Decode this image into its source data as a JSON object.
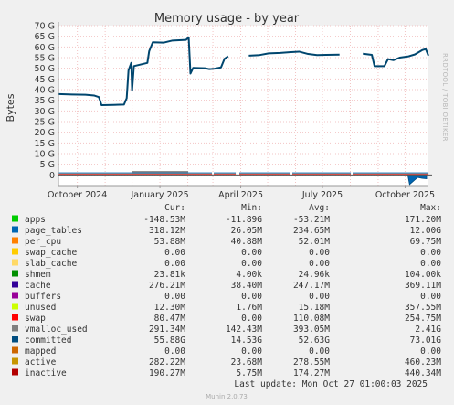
{
  "chart_data": {
    "type": "area",
    "title": "Memory usage - by year",
    "ylabel": "Bytes",
    "side_label": "RRDTOOL / TOBI OETIKER",
    "ylim": [
      -5,
      70
    ],
    "yticks": [
      {
        "v": 0,
        "label": "0"
      },
      {
        "v": 5,
        "label": "5 G"
      },
      {
        "v": 10,
        "label": "10 G"
      },
      {
        "v": 15,
        "label": "15 G"
      },
      {
        "v": 20,
        "label": "20 G"
      },
      {
        "v": 25,
        "label": "25 G"
      },
      {
        "v": 30,
        "label": "30 G"
      },
      {
        "v": 35,
        "label": "35 G"
      },
      {
        "v": 40,
        "label": "40 G"
      },
      {
        "v": 45,
        "label": "45 G"
      },
      {
        "v": 50,
        "label": "50 G"
      },
      {
        "v": 55,
        "label": "55 G"
      },
      {
        "v": 60,
        "label": "60 G"
      },
      {
        "v": 65,
        "label": "65 G"
      },
      {
        "v": 70,
        "label": "70 G"
      }
    ],
    "xlim": [
      "2024-09-10",
      "2025-10-27"
    ],
    "xticks": [
      {
        "date": "2024-10-01",
        "label": "October 2024"
      },
      {
        "date": "2025-01-01",
        "label": "January 2025"
      },
      {
        "date": "2025-04-01",
        "label": "April 2025"
      },
      {
        "date": "2025-07-01",
        "label": "July 2025"
      },
      {
        "date": "2025-10-01",
        "label": "October 2025"
      }
    ],
    "grid": true,
    "committed": [
      {
        "x": "2024-09-10",
        "y": 37.9
      },
      {
        "x": "2024-09-25",
        "y": 37.7
      },
      {
        "x": "2024-10-10",
        "y": 37.6
      },
      {
        "x": "2024-10-20",
        "y": 37.2
      },
      {
        "x": "2024-10-25",
        "y": 36.5
      },
      {
        "x": "2024-10-28",
        "y": 32.7
      },
      {
        "x": "2024-11-10",
        "y": 32.8
      },
      {
        "x": "2024-11-22",
        "y": 33.0
      },
      {
        "x": "2024-11-25",
        "y": 36.0
      },
      {
        "x": "2024-11-27",
        "y": 49.0
      },
      {
        "x": "2024-11-30",
        "y": 52.5
      },
      {
        "x": "2024-12-01",
        "y": 39.5
      },
      {
        "x": "2024-12-03",
        "y": 51.0
      },
      {
        "x": "2024-12-18",
        "y": 52.5
      },
      {
        "x": "2024-12-20",
        "y": 58.0
      },
      {
        "x": "2024-12-24",
        "y": 62.2
      },
      {
        "x": "2025-01-05",
        "y": 62.0
      },
      {
        "x": "2025-01-15",
        "y": 63.0
      },
      {
        "x": "2025-01-30",
        "y": 63.3
      },
      {
        "x": "2025-02-02",
        "y": 64.5
      },
      {
        "x": "2025-02-04",
        "y": 47.5
      },
      {
        "x": "2025-02-07",
        "y": 50.2
      },
      {
        "x": "2025-02-20",
        "y": 50.0
      },
      {
        "x": "2025-02-25",
        "y": 49.6
      },
      {
        "x": "2025-03-03",
        "y": 49.8
      },
      {
        "x": "2025-03-10",
        "y": 50.4
      },
      {
        "x": "2025-03-14",
        "y": 54.5
      },
      {
        "x": "2025-03-18",
        "y": 55.6
      },
      {
        "x": "2025-03-29",
        "y": 55.7
      },
      {
        "x": "2025-04-10",
        "y": 55.9
      },
      {
        "x": "2025-04-22",
        "y": 56.2
      },
      {
        "x": "2025-05-02",
        "y": 57.0
      },
      {
        "x": "2025-05-15",
        "y": 57.2
      },
      {
        "x": "2025-05-25",
        "y": 57.5
      },
      {
        "x": "2025-06-05",
        "y": 57.8
      },
      {
        "x": "2025-06-15",
        "y": 56.7
      },
      {
        "x": "2025-06-25",
        "y": 56.2
      },
      {
        "x": "2025-07-05",
        "y": 56.3
      },
      {
        "x": "2025-07-20",
        "y": 56.4
      },
      {
        "x": "2025-08-03",
        "y": 56.7
      },
      {
        "x": "2025-08-15",
        "y": 56.8
      },
      {
        "x": "2025-08-25",
        "y": 56.3
      },
      {
        "x": "2025-08-28",
        "y": 51.0
      },
      {
        "x": "2025-09-08",
        "y": 51.0
      },
      {
        "x": "2025-09-12",
        "y": 54.3
      },
      {
        "x": "2025-09-18",
        "y": 53.8
      },
      {
        "x": "2025-09-25",
        "y": 55.0
      },
      {
        "x": "2025-10-05",
        "y": 55.6
      },
      {
        "x": "2025-10-12",
        "y": 56.5
      },
      {
        "x": "2025-10-20",
        "y": 58.5
      },
      {
        "x": "2025-10-24",
        "y": 59.0
      },
      {
        "x": "2025-10-27",
        "y": 55.9
      }
    ],
    "gaps": [
      [
        "2025-02-27",
        "2025-03-01"
      ],
      [
        "2025-03-26",
        "2025-03-30"
      ],
      [
        "2025-05-26",
        "2025-05-28"
      ],
      [
        "2025-08-01",
        "2025-08-03"
      ]
    ],
    "bottom_band": {
      "layers": [
        {
          "name": "active",
          "value": 0.28,
          "color": "#e4b400"
        },
        {
          "name": "inactive",
          "value": 0.19,
          "color": "#cc0000"
        },
        {
          "name": "swap",
          "value": 0.08,
          "color": "#ff4d4d"
        },
        {
          "name": "vmalloc_used",
          "value": 0.29,
          "color": "#8c8c8c"
        },
        {
          "name": "page_tables",
          "value": 0.32,
          "color": "#0066b3"
        }
      ],
      "bump": [
        "2024-12-01",
        "2025-02-01",
        1.0
      ],
      "negative": [
        {
          "x": "2025-10-06",
          "y": -4.5
        },
        {
          "x": "2025-10-15",
          "y": -1.2
        },
        {
          "x": "2025-10-20",
          "y": -1.6
        },
        {
          "x": "2025-10-25",
          "y": -1.8
        }
      ]
    },
    "legend": {
      "headers": [
        "Cur:",
        "Min:",
        "Avg:",
        "Max:"
      ],
      "rows": [
        {
          "name": "apps",
          "color": "#00cc00",
          "cur": "-148.53M",
          "min": "-11.89G",
          "avg": "-53.21M",
          "max": "171.20M"
        },
        {
          "name": "page_tables",
          "color": "#0066b3",
          "cur": "318.12M",
          "min": "26.05M",
          "avg": "234.65M",
          "max": "12.00G"
        },
        {
          "name": "per_cpu",
          "color": "#ff8000",
          "cur": "53.88M",
          "min": "40.88M",
          "avg": "52.01M",
          "max": "69.75M"
        },
        {
          "name": "swap_cache",
          "color": "#ffcc00",
          "cur": "0.00",
          "min": "0.00",
          "avg": "0.00",
          "max": "0.00"
        },
        {
          "name": "slab_cache",
          "color": "#ffd966",
          "cur": "0.00",
          "min": "0.00",
          "avg": "0.00",
          "max": "0.00"
        },
        {
          "name": "shmem",
          "color": "#008f00",
          "cur": "23.81k",
          "min": "4.00k",
          "avg": "24.96k",
          "max": "104.00k"
        },
        {
          "name": "cache",
          "color": "#330099",
          "cur": "276.21M",
          "min": "38.40M",
          "avg": "247.17M",
          "max": "369.11M"
        },
        {
          "name": "buffers",
          "color": "#990099",
          "cur": "0.00",
          "min": "0.00",
          "avg": "0.00",
          "max": "0.00"
        },
        {
          "name": "unused",
          "color": "#ccff00",
          "cur": "12.30M",
          "min": "1.76M",
          "avg": "15.18M",
          "max": "357.55M"
        },
        {
          "name": "swap",
          "color": "#ff0000",
          "cur": "80.47M",
          "min": "0.00",
          "avg": "110.08M",
          "max": "254.75M"
        },
        {
          "name": "vmalloc_used",
          "color": "#808080",
          "cur": "291.34M",
          "min": "142.43M",
          "avg": "393.05M",
          "max": "2.41G"
        },
        {
          "name": "committed",
          "color": "#004d80",
          "cur": "55.88G",
          "min": "14.53G",
          "avg": "52.63G",
          "max": "73.01G"
        },
        {
          "name": "mapped",
          "color": "#cc6600",
          "cur": "0.00",
          "min": "0.00",
          "avg": "0.00",
          "max": "0.00"
        },
        {
          "name": "active",
          "color": "#c79500",
          "cur": "282.22M",
          "min": "23.68M",
          "avg": "278.55M",
          "max": "460.23M"
        },
        {
          "name": "inactive",
          "color": "#b30000",
          "cur": "190.27M",
          "min": "5.75M",
          "avg": "174.27M",
          "max": "440.34M"
        }
      ]
    },
    "last_update": "Last update: Mon Oct 27 01:00:03 2025",
    "version": "Munin 2.0.73"
  }
}
